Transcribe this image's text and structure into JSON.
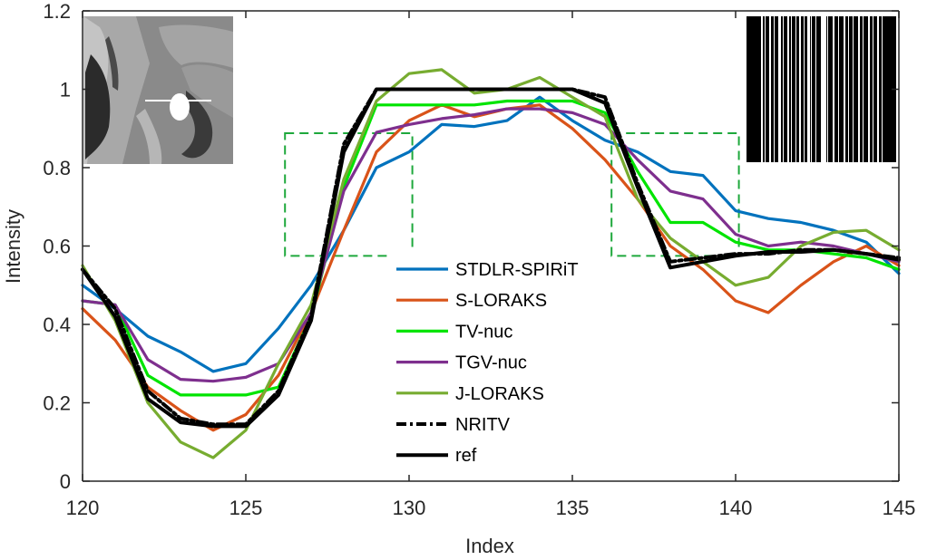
{
  "chart_data": {
    "type": "line",
    "title": "",
    "xlabel": "Index",
    "ylabel": "Intensity",
    "xlim": [
      120,
      145
    ],
    "ylim": [
      0,
      1.2
    ],
    "xticks": [
      120,
      125,
      130,
      135,
      140,
      145
    ],
    "xtick_labels": [
      "120",
      "125",
      "130",
      "135",
      "140",
      "145"
    ],
    "yticks": [
      0,
      0.2,
      0.4,
      0.6,
      0.8,
      1.0,
      1.2
    ],
    "ytick_labels": [
      "0",
      "0.2",
      "0.4",
      "0.6",
      "0.8",
      "1",
      "1.2"
    ],
    "grid": false,
    "legend_position": "center",
    "x": [
      120,
      121,
      122,
      123,
      124,
      125,
      126,
      127,
      128,
      129,
      130,
      131,
      132,
      133,
      134,
      135,
      136,
      137,
      138,
      139,
      140,
      141,
      142,
      143,
      144,
      145
    ],
    "series": [
      {
        "name": "STDLR-SPIRiT",
        "color": "#0072BD",
        "dash": "solid",
        "values": [
          0.5,
          0.44,
          0.37,
          0.33,
          0.28,
          0.3,
          0.39,
          0.5,
          0.64,
          0.8,
          0.84,
          0.91,
          0.905,
          0.92,
          0.98,
          0.92,
          0.87,
          0.84,
          0.79,
          0.78,
          0.69,
          0.67,
          0.66,
          0.64,
          0.61,
          0.53
        ]
      },
      {
        "name": "S-LORAKS",
        "color": "#D95319",
        "dash": "solid",
        "values": [
          0.44,
          0.36,
          0.24,
          0.18,
          0.13,
          0.17,
          0.27,
          0.43,
          0.64,
          0.84,
          0.92,
          0.96,
          0.93,
          0.95,
          0.96,
          0.9,
          0.82,
          0.72,
          0.6,
          0.54,
          0.46,
          0.43,
          0.5,
          0.56,
          0.6,
          0.55
        ]
      },
      {
        "name": "TV-nuc",
        "color": "#00E400",
        "dash": "solid",
        "values": [
          0.46,
          0.45,
          0.27,
          0.22,
          0.22,
          0.22,
          0.24,
          0.42,
          0.75,
          0.96,
          0.96,
          0.96,
          0.96,
          0.97,
          0.97,
          0.97,
          0.94,
          0.79,
          0.66,
          0.66,
          0.61,
          0.59,
          0.59,
          0.58,
          0.57,
          0.54
        ]
      },
      {
        "name": "TGV-nuc",
        "color": "#7E2F8E",
        "dash": "solid",
        "values": [
          0.46,
          0.45,
          0.31,
          0.26,
          0.255,
          0.265,
          0.3,
          0.43,
          0.74,
          0.89,
          0.91,
          0.925,
          0.935,
          0.95,
          0.95,
          0.94,
          0.91,
          0.82,
          0.74,
          0.72,
          0.63,
          0.6,
          0.61,
          0.6,
          0.58,
          0.56
        ]
      },
      {
        "name": "J-LORAKS",
        "color": "#77AC30",
        "dash": "solid",
        "values": [
          0.55,
          0.41,
          0.2,
          0.1,
          0.06,
          0.13,
          0.3,
          0.45,
          0.77,
          0.97,
          1.04,
          1.05,
          0.99,
          1.0,
          1.03,
          0.98,
          0.93,
          0.72,
          0.62,
          0.56,
          0.5,
          0.52,
          0.6,
          0.635,
          0.64,
          0.59
        ]
      },
      {
        "name": "NRITV",
        "color": "#000000",
        "dash": "dashdot",
        "values": [
          0.54,
          0.44,
          0.23,
          0.16,
          0.145,
          0.145,
          0.23,
          0.42,
          0.86,
          1.0,
          1.0,
          1.0,
          1.0,
          1.0,
          1.0,
          1.0,
          0.98,
          0.76,
          0.56,
          0.57,
          0.58,
          0.58,
          0.59,
          0.59,
          0.58,
          0.57
        ]
      },
      {
        "name": "ref",
        "color": "#000000",
        "dash": "solid",
        "values": [
          0.54,
          0.42,
          0.21,
          0.15,
          0.14,
          0.14,
          0.22,
          0.41,
          0.84,
          1.0,
          1.0,
          1.0,
          1.0,
          1.0,
          1.0,
          1.0,
          0.965,
          0.75,
          0.545,
          0.56,
          0.575,
          0.585,
          0.585,
          0.59,
          0.58,
          0.565
        ]
      }
    ],
    "zoom_boxes": [
      {
        "x_range": [
          126.2,
          130.1
        ],
        "y_range": [
          0.575,
          0.888
        ],
        "color": "#1EA83C"
      },
      {
        "x_range": [
          136.2,
          140.1
        ],
        "y_range": [
          0.575,
          0.888
        ],
        "color": "#1EA83C"
      }
    ]
  }
}
